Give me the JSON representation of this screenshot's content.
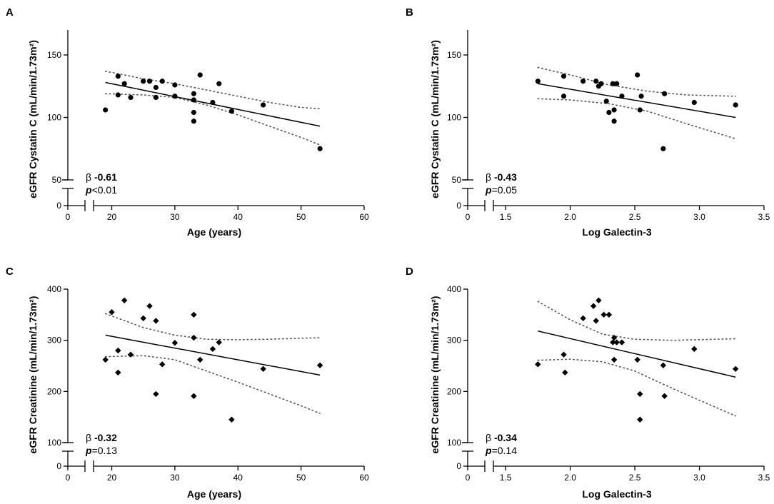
{
  "figure": {
    "description_panels": [
      "A",
      "B",
      "C",
      "D"
    ]
  },
  "chart_data": [
    {
      "panel": "A",
      "type": "scatter",
      "xlabel": "Age (years)",
      "ylabel": "eGFR Cystatin C (mL/min/1.73m²)",
      "xlim": [
        0,
        60
      ],
      "ylim": [
        50,
        170
      ],
      "xticks": [
        "0",
        "20",
        "30",
        "40",
        "50",
        "60"
      ],
      "yticks": [
        "0",
        "50",
        "100",
        "150"
      ],
      "broken_x": true,
      "broken_y": true,
      "marker": "circle",
      "stat_beta": "-0.61",
      "stat_p": "<0.01",
      "points": [
        [
          19,
          106
        ],
        [
          21,
          133
        ],
        [
          21,
          118
        ],
        [
          22,
          127
        ],
        [
          23,
          116
        ],
        [
          25,
          129
        ],
        [
          26,
          129
        ],
        [
          27,
          124
        ],
        [
          27,
          116
        ],
        [
          28,
          129
        ],
        [
          30,
          126
        ],
        [
          30,
          117
        ],
        [
          33,
          119
        ],
        [
          33,
          114
        ],
        [
          33,
          104
        ],
        [
          33,
          97
        ],
        [
          34,
          134
        ],
        [
          36,
          112
        ],
        [
          37,
          127
        ],
        [
          39,
          105
        ],
        [
          44,
          110
        ],
        [
          53,
          75
        ]
      ],
      "fit": [
        [
          19,
          128
        ],
        [
          53,
          93
        ]
      ],
      "ci_upper": [
        [
          19,
          137
        ],
        [
          25,
          131
        ],
        [
          30,
          127
        ],
        [
          35,
          122
        ],
        [
          40,
          117
        ],
        [
          45,
          112
        ],
        [
          50,
          108
        ],
        [
          53,
          107
        ]
      ],
      "ci_lower": [
        [
          19,
          119
        ],
        [
          25,
          118
        ],
        [
          30,
          116
        ],
        [
          35,
          110
        ],
        [
          40,
          102
        ],
        [
          45,
          93
        ],
        [
          50,
          84
        ],
        [
          53,
          78
        ]
      ]
    },
    {
      "panel": "B",
      "type": "scatter",
      "xlabel": "Log Galectin-3",
      "ylabel": "eGFR Cystatin C (mL/min/1.73m²)",
      "xlim": [
        1.5,
        3.5
      ],
      "ylim": [
        50,
        170
      ],
      "xticks": [
        "0",
        "1.5",
        "2.0",
        "2.5",
        "3.0",
        "3.5"
      ],
      "yticks": [
        "0",
        "50",
        "100",
        "150"
      ],
      "broken_x": true,
      "broken_y": true,
      "marker": "circle",
      "stat_beta": "-0.43",
      "stat_p": "=0.05",
      "points": [
        [
          1.75,
          129
        ],
        [
          1.95,
          133
        ],
        [
          1.95,
          117
        ],
        [
          2.1,
          129
        ],
        [
          2.2,
          129
        ],
        [
          2.22,
          125
        ],
        [
          2.24,
          127
        ],
        [
          2.28,
          113
        ],
        [
          2.3,
          104
        ],
        [
          2.33,
          127
        ],
        [
          2.34,
          97
        ],
        [
          2.34,
          106
        ],
        [
          2.36,
          127
        ],
        [
          2.4,
          117
        ],
        [
          2.52,
          134
        ],
        [
          2.54,
          106
        ],
        [
          2.55,
          117
        ],
        [
          2.72,
          75
        ],
        [
          2.73,
          119
        ],
        [
          2.96,
          112
        ],
        [
          3.28,
          110
        ]
      ],
      "fit": [
        [
          1.75,
          127
        ],
        [
          3.28,
          100
        ]
      ],
      "ci_upper": [
        [
          1.75,
          140
        ],
        [
          2.0,
          134
        ],
        [
          2.3,
          126
        ],
        [
          2.6,
          121
        ],
        [
          2.9,
          118
        ],
        [
          3.28,
          117
        ]
      ],
      "ci_lower": [
        [
          1.75,
          115
        ],
        [
          2.0,
          114
        ],
        [
          2.3,
          111
        ],
        [
          2.6,
          105
        ],
        [
          2.9,
          95
        ],
        [
          3.28,
          83
        ]
      ]
    },
    {
      "panel": "C",
      "type": "scatter",
      "xlabel": "Age (years)",
      "ylabel": "eGFR Creatinine (mL/min/1.73m²)",
      "xlim": [
        0,
        60
      ],
      "ylim": [
        100,
        400
      ],
      "xticks": [
        "0",
        "20",
        "30",
        "40",
        "50",
        "60"
      ],
      "yticks": [
        "0",
        "100",
        "200",
        "300",
        "400"
      ],
      "broken_x": true,
      "broken_y": true,
      "marker": "diamond",
      "stat_beta": "-0.32",
      "stat_p": "=0.13",
      "points": [
        [
          19,
          262
        ],
        [
          20,
          355
        ],
        [
          21,
          280
        ],
        [
          21,
          237
        ],
        [
          22,
          378
        ],
        [
          23,
          272
        ],
        [
          25,
          343
        ],
        [
          26,
          367
        ],
        [
          27,
          338
        ],
        [
          27,
          195
        ],
        [
          28,
          253
        ],
        [
          30,
          295
        ],
        [
          33,
          350
        ],
        [
          33,
          305
        ],
        [
          33,
          191
        ],
        [
          34,
          262
        ],
        [
          36,
          283
        ],
        [
          37,
          296
        ],
        [
          39,
          145
        ],
        [
          44,
          244
        ],
        [
          53,
          251
        ]
      ],
      "fit": [
        [
          19,
          310
        ],
        [
          53,
          232
        ]
      ],
      "ci_upper": [
        [
          19,
          352
        ],
        [
          25,
          325
        ],
        [
          30,
          310
        ],
        [
          35,
          302
        ],
        [
          40,
          301
        ],
        [
          45,
          302
        ],
        [
          50,
          304
        ],
        [
          53,
          305
        ]
      ],
      "ci_lower": [
        [
          19,
          268
        ],
        [
          25,
          270
        ],
        [
          30,
          262
        ],
        [
          35,
          240
        ],
        [
          40,
          218
        ],
        [
          45,
          195
        ],
        [
          50,
          172
        ],
        [
          53,
          157
        ]
      ]
    },
    {
      "panel": "D",
      "type": "scatter",
      "xlabel": "Log Galectin-3",
      "ylabel": "eGFR Creatinine (mL/min/1.73m²)",
      "xlim": [
        1.5,
        3.5
      ],
      "ylim": [
        100,
        400
      ],
      "xticks": [
        "0",
        "1.5",
        "2.0",
        "2.5",
        "3.0",
        "3.5"
      ],
      "yticks": [
        "0",
        "100",
        "200",
        "300",
        "400"
      ],
      "broken_x": true,
      "broken_y": true,
      "marker": "diamond",
      "stat_beta": "-0.34",
      "stat_p": "=0.14",
      "points": [
        [
          1.75,
          253
        ],
        [
          1.95,
          272
        ],
        [
          1.96,
          237
        ],
        [
          2.1,
          343
        ],
        [
          2.18,
          367
        ],
        [
          2.2,
          338
        ],
        [
          2.22,
          378
        ],
        [
          2.26,
          350
        ],
        [
          2.3,
          350
        ],
        [
          2.33,
          296
        ],
        [
          2.34,
          305
        ],
        [
          2.34,
          262
        ],
        [
          2.36,
          296
        ],
        [
          2.4,
          296
        ],
        [
          2.52,
          262
        ],
        [
          2.54,
          195
        ],
        [
          2.54,
          145
        ],
        [
          2.72,
          251
        ],
        [
          2.73,
          191
        ],
        [
          2.96,
          283
        ],
        [
          3.28,
          244
        ]
      ],
      "fit": [
        [
          1.75,
          318
        ],
        [
          3.28,
          228
        ]
      ],
      "ci_upper": [
        [
          1.75,
          376
        ],
        [
          2.0,
          340
        ],
        [
          2.25,
          312
        ],
        [
          2.5,
          302
        ],
        [
          2.8,
          300
        ],
        [
          3.28,
          303
        ]
      ],
      "ci_lower": [
        [
          1.75,
          261
        ],
        [
          2.0,
          263
        ],
        [
          2.25,
          258
        ],
        [
          2.5,
          240
        ],
        [
          2.8,
          205
        ],
        [
          3.28,
          152
        ]
      ]
    }
  ]
}
